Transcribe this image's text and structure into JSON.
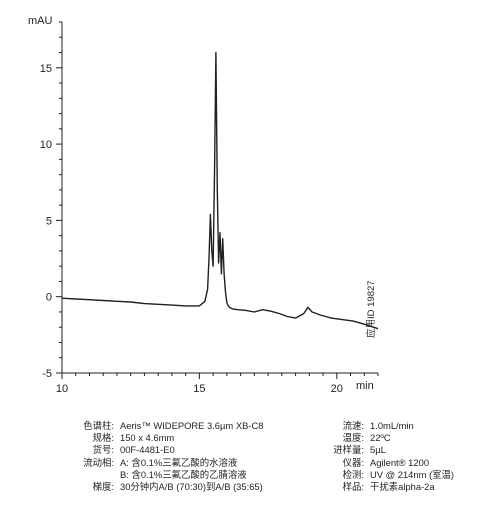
{
  "chart_data": {
    "type": "line",
    "ylabel": "mAU",
    "xlabel": "min",
    "xlim": [
      10,
      21.5
    ],
    "ylim": [
      -5,
      18
    ],
    "x_ticks": [
      10,
      15,
      20
    ],
    "y_ticks": [
      -5,
      0,
      5,
      10,
      15
    ],
    "grid": false,
    "series": [
      {
        "x": [
          10.0,
          10.5,
          11.0,
          11.5,
          12.0,
          12.5,
          13.0,
          13.5,
          14.0,
          14.5,
          15.0,
          15.2,
          15.3,
          15.35,
          15.4,
          15.45,
          15.5,
          15.55,
          15.6,
          15.65,
          15.7,
          15.75,
          15.8,
          15.85,
          15.9,
          15.95,
          16.0,
          16.05,
          16.1,
          16.2,
          16.4,
          16.7,
          17.0,
          17.3,
          17.6,
          17.9,
          18.2,
          18.5,
          18.8,
          18.95,
          19.1,
          19.4,
          19.8,
          20.2,
          20.6,
          21.0,
          21.5
        ],
        "y": [
          -0.1,
          -0.15,
          -0.2,
          -0.25,
          -0.3,
          -0.35,
          -0.45,
          -0.5,
          -0.55,
          -0.6,
          -0.6,
          -0.3,
          0.5,
          2.5,
          5.4,
          3.0,
          2.0,
          8.0,
          16.0,
          7.0,
          2.2,
          4.2,
          1.5,
          3.8,
          1.5,
          0.3,
          -0.4,
          -0.6,
          -0.7,
          -0.8,
          -0.85,
          -0.9,
          -1.0,
          -0.85,
          -0.95,
          -1.1,
          -1.3,
          -1.4,
          -1.1,
          -0.7,
          -1.0,
          -1.2,
          -1.4,
          -1.5,
          -1.6,
          -1.8,
          -2.1
        ]
      }
    ]
  },
  "side_id": "应用ID 19827",
  "conditions_left": [
    {
      "label": "色谱柱:",
      "value": "Aeris™ WIDEPORE 3.6µm XB-C8"
    },
    {
      "label": "规格:",
      "value": "150 x 4.6mm"
    },
    {
      "label": "货号:",
      "value": "00F-4481-E0"
    },
    {
      "label": "流动相:",
      "value": "A: 含0.1%三氟乙酸的水溶液"
    },
    {
      "label": "",
      "value": "B: 含0.1%三氟乙酸的乙腈溶液"
    },
    {
      "label": "梯度:",
      "value": "30分钟内A/B (70:30)到A/B (35:65)"
    }
  ],
  "conditions_right": [
    {
      "label": "流速:",
      "value": "1.0mL/min"
    },
    {
      "label": "温度:",
      "value": "22ºC"
    },
    {
      "label": "进样量:",
      "value": "5µL"
    },
    {
      "label": "仪器:",
      "value": "Agilent® 1200"
    },
    {
      "label": "检测:",
      "value": "UV @ 214nm (室温)"
    },
    {
      "label": "样品:",
      "value": "干扰素alpha-2a"
    }
  ]
}
